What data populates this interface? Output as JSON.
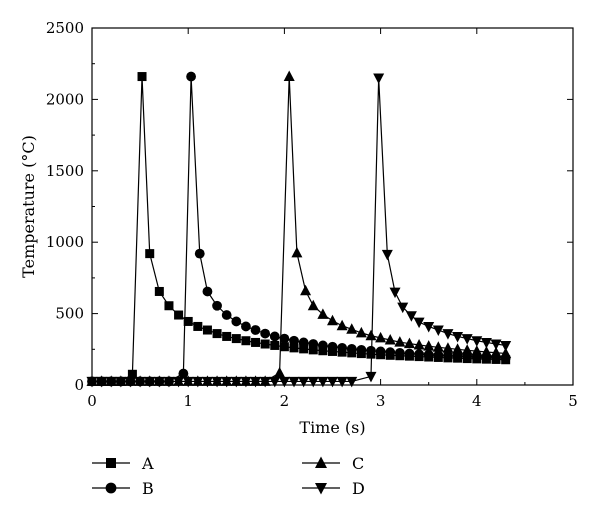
{
  "chart_data": {
    "type": "line",
    "xlabel": "Time (s)",
    "ylabel": "Temperature (°C)",
    "xlim": [
      0,
      5
    ],
    "ylim": [
      0,
      2500
    ],
    "xticks": [
      0,
      1,
      2,
      3,
      4,
      5
    ],
    "yticks": [
      0,
      500,
      1000,
      1500,
      2000,
      2500
    ],
    "grid": false,
    "legend_position": "bottom",
    "series": [
      {
        "name": "A",
        "marker": "square",
        "x": [
          0.0,
          0.1,
          0.2,
          0.3,
          0.42,
          0.52,
          0.6,
          0.7,
          0.8,
          0.9,
          1.0,
          1.1,
          1.2,
          1.3,
          1.4,
          1.5,
          1.6,
          1.7,
          1.8,
          1.9,
          2.0,
          2.1,
          2.2,
          2.3,
          2.4,
          2.5,
          2.6,
          2.7,
          2.8,
          2.9,
          3.0,
          3.1,
          3.2,
          3.3,
          3.4,
          3.5,
          3.6,
          3.7,
          3.8,
          3.9,
          4.0,
          4.1,
          4.2,
          4.3
        ],
        "y": [
          25,
          25,
          25,
          25,
          75,
          2160,
          920,
          655,
          555,
          490,
          445,
          410,
          385,
          360,
          340,
          325,
          310,
          298,
          287,
          277,
          268,
          260,
          253,
          246,
          240,
          235,
          230,
          225,
          220,
          216,
          212,
          208,
          205,
          202,
          199,
          196,
          193,
          190,
          188,
          185,
          183,
          181,
          179,
          177
        ]
      },
      {
        "name": "B",
        "marker": "circle",
        "x": [
          0.0,
          0.1,
          0.2,
          0.3,
          0.4,
          0.5,
          0.6,
          0.7,
          0.8,
          0.95,
          1.03,
          1.12,
          1.2,
          1.3,
          1.4,
          1.5,
          1.6,
          1.7,
          1.8,
          1.9,
          2.0,
          2.1,
          2.2,
          2.3,
          2.4,
          2.5,
          2.6,
          2.7,
          2.8,
          2.9,
          3.0,
          3.1,
          3.2,
          3.3,
          3.4,
          3.5,
          3.6,
          3.7,
          3.8,
          3.9,
          4.0,
          4.1,
          4.2,
          4.3
        ],
        "y": [
          25,
          25,
          25,
          25,
          25,
          25,
          25,
          25,
          25,
          80,
          2160,
          920,
          655,
          555,
          490,
          445,
          410,
          385,
          360,
          340,
          325,
          310,
          298,
          287,
          277,
          268,
          260,
          253,
          246,
          240,
          235,
          230,
          225,
          220,
          216,
          212,
          208,
          205,
          202,
          199,
          196,
          193,
          190,
          188
        ]
      },
      {
        "name": "C",
        "marker": "triangle-up",
        "x": [
          0.0,
          0.1,
          0.2,
          0.3,
          0.4,
          0.5,
          0.6,
          0.7,
          0.8,
          0.9,
          1.0,
          1.1,
          1.2,
          1.3,
          1.4,
          1.5,
          1.6,
          1.7,
          1.8,
          1.95,
          2.05,
          2.13,
          2.22,
          2.3,
          2.4,
          2.5,
          2.6,
          2.7,
          2.8,
          2.9,
          3.0,
          3.1,
          3.2,
          3.3,
          3.4,
          3.5,
          3.6,
          3.7,
          3.8,
          3.9,
          4.0,
          4.1,
          4.2,
          4.3
        ],
        "y": [
          25,
          25,
          25,
          25,
          25,
          25,
          25,
          25,
          25,
          25,
          25,
          25,
          25,
          25,
          25,
          25,
          25,
          25,
          25,
          85,
          2160,
          925,
          660,
          555,
          495,
          450,
          415,
          390,
          365,
          345,
          330,
          315,
          300,
          290,
          280,
          272,
          264,
          257,
          250,
          243,
          237,
          231,
          226,
          221
        ]
      },
      {
        "name": "D",
        "marker": "triangle-down",
        "x": [
          0.0,
          0.1,
          0.2,
          0.3,
          0.4,
          0.5,
          0.6,
          0.7,
          0.8,
          0.9,
          1.0,
          1.1,
          1.2,
          1.3,
          1.4,
          1.5,
          1.6,
          1.7,
          1.8,
          1.9,
          2.0,
          2.1,
          2.2,
          2.3,
          2.4,
          2.5,
          2.6,
          2.7,
          2.9,
          2.98,
          3.07,
          3.15,
          3.23,
          3.32,
          3.4,
          3.5,
          3.6,
          3.7,
          3.8,
          3.9,
          4.0,
          4.1,
          4.2,
          4.3
        ],
        "y": [
          25,
          25,
          25,
          25,
          25,
          25,
          25,
          25,
          25,
          25,
          25,
          25,
          25,
          25,
          25,
          25,
          25,
          25,
          25,
          25,
          25,
          25,
          25,
          25,
          25,
          25,
          25,
          25,
          60,
          2150,
          915,
          650,
          545,
          485,
          440,
          410,
          385,
          360,
          340,
          325,
          310,
          298,
          287,
          277
        ]
      }
    ]
  }
}
